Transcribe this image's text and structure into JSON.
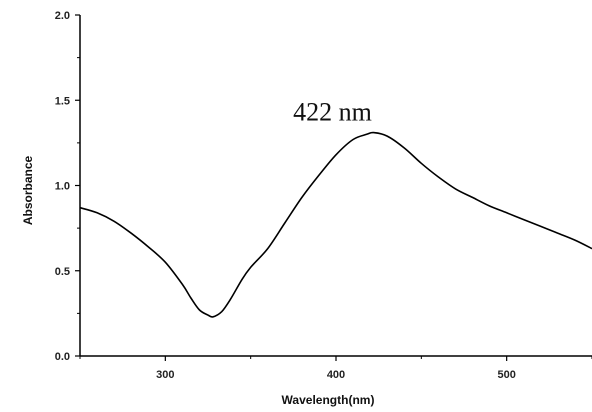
{
  "chart_data": {
    "type": "line",
    "xlabel": "Wavelength(nm)",
    "ylabel": "Absorbance",
    "xlim": [
      250,
      550
    ],
    "ylim": [
      0.0,
      2.0
    ],
    "x_ticks": [
      "300",
      "400",
      "500"
    ],
    "y_ticks": [
      "0.0",
      "0.5",
      "1.0",
      "1.5",
      "2.0"
    ],
    "grid": false,
    "annotations": [
      {
        "text": "422 nm",
        "x": 422,
        "y": 1.31
      }
    ],
    "series": [
      {
        "x": [
          250,
          260,
          270,
          280,
          290,
          300,
          310,
          315,
          320,
          325,
          328,
          333,
          338,
          345,
          350,
          360,
          370,
          380,
          390,
          400,
          410,
          418,
          422,
          430,
          440,
          450,
          460,
          470,
          480,
          490,
          500,
          510,
          520,
          530,
          540,
          550
        ],
        "values": [
          0.87,
          0.84,
          0.79,
          0.72,
          0.64,
          0.55,
          0.42,
          0.34,
          0.27,
          0.24,
          0.23,
          0.26,
          0.33,
          0.45,
          0.52,
          0.63,
          0.78,
          0.93,
          1.06,
          1.18,
          1.27,
          1.3,
          1.31,
          1.29,
          1.22,
          1.13,
          1.05,
          0.98,
          0.93,
          0.88,
          0.84,
          0.8,
          0.76,
          0.72,
          0.68,
          0.63
        ],
        "color": "#000000"
      }
    ]
  }
}
